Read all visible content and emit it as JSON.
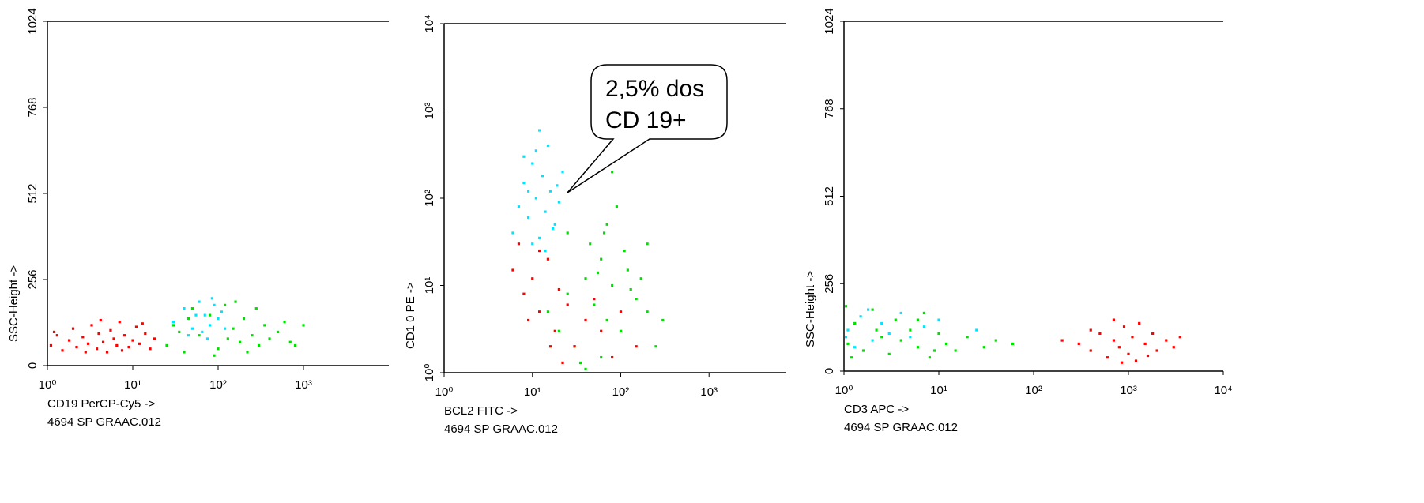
{
  "chart_data": [
    {
      "type": "scatter",
      "xscale": "log",
      "yscale": "linear",
      "xlim": [
        1,
        10000
      ],
      "ylim": [
        0,
        1024
      ],
      "xticks": [
        {
          "value": 1,
          "label": "10⁰"
        },
        {
          "value": 10,
          "label": "10¹"
        },
        {
          "value": 100,
          "label": "10²"
        },
        {
          "value": 1000,
          "label": "10³"
        }
      ],
      "yticks": [
        0,
        256,
        512,
        768,
        1024
      ],
      "x_label": "CD19 PerCP-Cy5 ->",
      "x_label_color": "#ff0000",
      "y_label": "SSC-Height ->",
      "y_label_color": "#00e5e5",
      "subtitle": "4694 SP GRAAC.012",
      "series": [
        {
          "color": "#ff0000",
          "x": [
            1.1,
            1.3,
            1.5,
            1.8,
            2,
            2.2,
            2.6,
            3,
            3.3,
            3.8,
            4,
            4.5,
            5,
            5.5,
            6,
            6.5,
            7,
            8,
            9,
            10,
            11,
            12,
            14,
            16,
            18,
            1.2,
            2.8,
            4.2,
            7.5,
            13
          ],
          "y": [
            60,
            90,
            45,
            75,
            110,
            55,
            85,
            65,
            120,
            50,
            95,
            70,
            40,
            105,
            80,
            60,
            130,
            90,
            55,
            75,
            115,
            65,
            95,
            50,
            80,
            100,
            40,
            135,
            45,
            125
          ]
        },
        {
          "color": "#00e000",
          "x": [
            25,
            30,
            40,
            50,
            60,
            80,
            100,
            120,
            150,
            180,
            200,
            250,
            300,
            350,
            400,
            500,
            700,
            35,
            90,
            160,
            220,
            280,
            45,
            130,
            600,
            1000,
            800
          ],
          "y": [
            60,
            120,
            40,
            170,
            90,
            150,
            50,
            180,
            110,
            70,
            140,
            90,
            60,
            120,
            80,
            100,
            70,
            100,
            30,
            190,
            40,
            170,
            140,
            80,
            130,
            120,
            60
          ]
        },
        {
          "color": "#00e5ff",
          "x": [
            30,
            40,
            50,
            60,
            70,
            80,
            90,
            100,
            110,
            45,
            65,
            120,
            85,
            55,
            75
          ],
          "y": [
            130,
            170,
            110,
            190,
            150,
            120,
            180,
            140,
            160,
            90,
            100,
            110,
            200,
            150,
            80
          ]
        }
      ]
    },
    {
      "type": "scatter",
      "xscale": "log",
      "yscale": "log",
      "xlim": [
        1,
        7500
      ],
      "ylim": [
        1,
        10000
      ],
      "xticks": [
        {
          "value": 1,
          "label": "10⁰"
        },
        {
          "value": 10,
          "label": "10¹"
        },
        {
          "value": 100,
          "label": "10²"
        },
        {
          "value": 1000,
          "label": "10³"
        }
      ],
      "yticks": [
        {
          "value": 1,
          "label": "10⁰"
        },
        {
          "value": 10,
          "label": "10¹"
        },
        {
          "value": 100,
          "label": "10²"
        },
        {
          "value": 1000,
          "label": "10³"
        },
        {
          "value": 10000,
          "label": "10⁴"
        }
      ],
      "x_label": "BCL2 FITC ->",
      "x_label_color": "#00e000",
      "y_label": "CD1 0 PE ->",
      "y_label_color": "#3399ff",
      "subtitle": "4694 SP GRAAC.012",
      "annotation": [
        "2,5% dos",
        "CD 19+"
      ],
      "series": [
        {
          "color": "#00e000",
          "x": [
            15,
            20,
            25,
            30,
            40,
            50,
            60,
            70,
            80,
            100,
            120,
            150,
            200,
            250,
            60,
            45,
            70,
            90,
            80,
            65,
            110,
            130,
            35,
            55,
            170,
            200,
            25,
            300,
            75,
            40
          ],
          "y": [
            5,
            3,
            8,
            2,
            12,
            6,
            20,
            4,
            10,
            3,
            15,
            7,
            5,
            2,
            1.5,
            30,
            50,
            80,
            200,
            40,
            25,
            9,
            1.3,
            14,
            12,
            30,
            40,
            4,
            300,
            1.1
          ]
        },
        {
          "color": "#ff0000",
          "x": [
            6,
            8,
            10,
            12,
            15,
            18,
            20,
            25,
            30,
            40,
            60,
            80,
            100,
            12,
            9,
            22,
            50,
            150,
            7,
            16
          ],
          "y": [
            15,
            8,
            12,
            5,
            20,
            3,
            9,
            6,
            2,
            4,
            3,
            1.5,
            5,
            25,
            4,
            1.3,
            7,
            2,
            30,
            2
          ]
        },
        {
          "color": "#00e5ff",
          "x": [
            6,
            7,
            8,
            9,
            10,
            11,
            12,
            13,
            14,
            15,
            16,
            18,
            20,
            22,
            8,
            10,
            12,
            14,
            17,
            9,
            11,
            19
          ],
          "y": [
            40,
            80,
            150,
            60,
            250,
            100,
            35,
            180,
            70,
            400,
            120,
            50,
            90,
            200,
            300,
            30,
            600,
            25,
            45,
            120,
            350,
            140
          ]
        }
      ]
    },
    {
      "type": "scatter",
      "xscale": "log",
      "yscale": "linear",
      "xlim": [
        1,
        10000
      ],
      "ylim": [
        0,
        1024
      ],
      "xticks": [
        {
          "value": 1,
          "label": "10⁰"
        },
        {
          "value": 10,
          "label": "10¹"
        },
        {
          "value": 100,
          "label": "10²"
        },
        {
          "value": 1000,
          "label": "10³"
        },
        {
          "value": 10000,
          "label": "10⁴"
        }
      ],
      "yticks": [
        0,
        256,
        512,
        768,
        1024
      ],
      "x_label": "CD3 APC ->",
      "x_label_color": "#000000",
      "y_label": "SSC-Height ->",
      "y_label_color": "#00e5e5",
      "subtitle": "4694 SP GRAAC.012",
      "series": [
        {
          "color": "#00e000",
          "x": [
            1.1,
            1.3,
            1.6,
            2,
            2.5,
            3,
            3.5,
            4,
            5,
            6,
            7,
            8,
            10,
            12,
            15,
            20,
            30,
            40,
            60,
            1.2,
            2.2,
            6,
            9,
            1.05
          ],
          "y": [
            80,
            140,
            60,
            180,
            100,
            50,
            150,
            90,
            120,
            70,
            170,
            40,
            110,
            80,
            60,
            100,
            70,
            90,
            80,
            40,
            120,
            150,
            60,
            190
          ]
        },
        {
          "color": "#00e5ff",
          "x": [
            1.1,
            1.5,
            2,
            2.5,
            3,
            4,
            5,
            1.3,
            1.8,
            7,
            10,
            1.05,
            25
          ],
          "y": [
            120,
            160,
            90,
            140,
            110,
            170,
            100,
            70,
            180,
            130,
            150,
            100,
            120
          ]
        },
        {
          "color": "#ff0000",
          "x": [
            300,
            400,
            500,
            600,
            700,
            800,
            900,
            1000,
            1100,
            1200,
            1500,
            1800,
            2000,
            2500,
            3000,
            700,
            1300,
            850,
            1600,
            400,
            200,
            3500
          ],
          "y": [
            80,
            60,
            110,
            40,
            90,
            70,
            130,
            50,
            100,
            30,
            80,
            110,
            60,
            90,
            70,
            150,
            140,
            25,
            45,
            120,
            90,
            100
          ]
        }
      ]
    }
  ]
}
